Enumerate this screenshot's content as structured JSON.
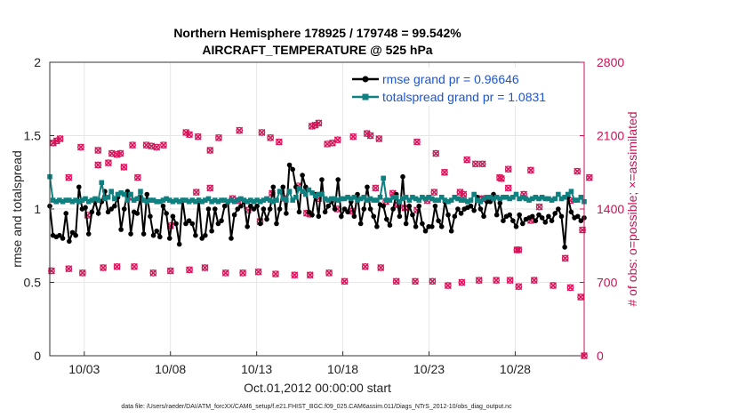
{
  "chart_data": {
    "type": "line",
    "title_line1": "Northern Hemisphere 178925 / 179748 = 99.542%",
    "title_line2": "AIRCRAFT_TEMPERATURE @ 525 hPa",
    "xlabel": "Oct.01,2012 00:00:00 start",
    "ylabel_left": "rmse and totalspread",
    "ylabel_right": "# of obs: o=possible; ×=assimilated",
    "x_range": [
      1.0,
      32.0
    ],
    "ylim_left": [
      0,
      2
    ],
    "ylim_right": [
      0,
      2800
    ],
    "x_ticks": [
      {
        "x": 3,
        "label": "10/03"
      },
      {
        "x": 8,
        "label": "10/08"
      },
      {
        "x": 13,
        "label": "10/13"
      },
      {
        "x": 18,
        "label": "10/18"
      },
      {
        "x": 23,
        "label": "10/23"
      },
      {
        "x": 28,
        "label": "10/28"
      }
    ],
    "y_ticks_left": [
      "0",
      "0.5",
      "1",
      "1.5",
      "2"
    ],
    "y_ticks_right": [
      "0",
      "700",
      "1400",
      "2100",
      "2800"
    ],
    "colors": {
      "rmse": "#000000",
      "spread": "#0e8080",
      "obs": "#d8145a",
      "legend_text": "#1a55d6",
      "right_axis": "#cc1155"
    },
    "series": [
      {
        "name": "rmse grand pr = 0.96646",
        "values": [
          1.02,
          0.82,
          0.81,
          0.82,
          0.8,
          0.97,
          0.78,
          0.84,
          0.82,
          1.15,
          1.0,
          1.01,
          0.83,
          0.98,
          1.05,
          0.97,
          1.05,
          1.12,
          0.98,
          1.0,
          1.02,
          1.08,
          0.86,
          1.0,
          1.12,
          0.83,
          0.98,
          0.97,
          1.08,
          0.83,
          1.1,
          0.95,
          0.82,
          0.85,
          0.81,
          1.02,
          0.97,
          0.8,
          0.95,
          0.9,
          0.76,
          1.06,
          0.9,
          0.92,
          0.9,
          0.82,
          1.06,
          0.8,
          0.82,
          1.0,
          0.85,
          1.0,
          0.9,
          0.92,
          1.02,
          1.05,
          0.8,
          0.96,
          1.0,
          1.02,
          1.05,
          0.88,
          1.02,
          1.0,
          1.02,
          0.9,
          1.0,
          0.93,
          1.0,
          1.15,
          0.9,
          1.0,
          1.15,
          0.97,
          1.3,
          1.27,
          1.15,
          0.98,
          1.23,
          1.15,
          0.98,
          0.96,
          1.1,
          0.95,
          1.2,
          0.98,
          1.02,
          1.05,
          1.0,
          1.2,
          0.95,
          1.0,
          0.98,
          1.05,
          0.95,
          1.1,
          0.9,
          1.0,
          1.15,
          1.0,
          0.95,
          0.88,
          1.03,
          1.02,
          0.93,
          0.89,
          1.0,
          1.1,
          0.95,
          1.22,
          0.9,
          1.02,
          0.96,
          0.88,
          1.02,
          0.9,
          0.85,
          0.88,
          0.88,
          1.02,
          0.92,
          0.88,
          1.05,
          0.96,
          0.85,
          0.95,
          1.0,
          0.97,
          1.0,
          1.01,
          1.02,
          0.99,
          1.08,
          1.0,
          0.95,
          1.05,
          1.05,
          1.1,
          0.96,
          1.04,
          0.92,
          0.95,
          0.96,
          0.92,
          0.88,
          0.96,
          0.9,
          0.93,
          0.94,
          0.95,
          0.92,
          0.96,
          0.94,
          0.91,
          0.95,
          0.92,
          0.97,
          1.0,
          0.95,
          0.74,
          1.08,
          0.98,
          0.94,
          0.95,
          0.92,
          0.94
        ],
        "color": "#000000"
      },
      {
        "name": "totalspread grand pr = 1.0831",
        "values": [
          1.22,
          1.06,
          1.05,
          1.06,
          1.05,
          1.06,
          1.06,
          1.05,
          1.06,
          1.05,
          1.06,
          1.07,
          1.05,
          1.06,
          1.07,
          1.06,
          1.18,
          1.07,
          1.08,
          1.12,
          1.07,
          1.1,
          1.11,
          1.1,
          1.06,
          1.1,
          1.06,
          1.07,
          1.12,
          1.06,
          1.05,
          1.06,
          1.06,
          1.05,
          1.05,
          1.06,
          1.07,
          1.06,
          1.05,
          1.06,
          1.05,
          1.06,
          1.06,
          1.05,
          1.06,
          1.05,
          1.06,
          1.05,
          1.06,
          1.07,
          1.05,
          1.06,
          1.05,
          1.06,
          1.06,
          1.05,
          1.06,
          1.05,
          1.06,
          1.07,
          1.06,
          1.05,
          1.06,
          1.05,
          1.06,
          1.05,
          1.06,
          1.07,
          1.06,
          1.05,
          1.06,
          1.12,
          1.07,
          1.06,
          1.12,
          1.06,
          1.08,
          1.14,
          1.12,
          1.1,
          1.13,
          1.11,
          1.09,
          1.1,
          1.1,
          1.07,
          1.06,
          1.07,
          1.07,
          1.06,
          1.07,
          1.07,
          1.08,
          1.07,
          1.08,
          1.06,
          1.07,
          1.08,
          1.06,
          1.07,
          1.06,
          1.06,
          1.08,
          1.21,
          1.06,
          1.06,
          1.08,
          1.08,
          1.05,
          1.07,
          1.08,
          1.06,
          1.08,
          1.07,
          1.06,
          1.08,
          1.07,
          1.08,
          1.07,
          1.06,
          1.06,
          1.08,
          1.06,
          1.05,
          1.06,
          1.08,
          1.07,
          1.06,
          1.06,
          1.05,
          1.06,
          1.1,
          1.06,
          1.05,
          1.07,
          1.08,
          1.08,
          1.07,
          1.08,
          1.07,
          1.08,
          1.08,
          1.07,
          1.08,
          1.1,
          1.07,
          1.08,
          1.07,
          1.06,
          1.07,
          1.08,
          1.07,
          1.08,
          1.07,
          1.07,
          1.06,
          1.07,
          1.1,
          1.07,
          1.08,
          1.1,
          1.12,
          1.06,
          1.06,
          1.08,
          1.05
        ],
        "color": "#0e8080"
      }
    ],
    "obs_possible_top": [
      [
        1.2,
        2030
      ],
      [
        1.4,
        2050
      ],
      [
        1.6,
        2070
      ],
      [
        2.8,
        1990
      ],
      [
        3.8,
        1960
      ],
      [
        4.6,
        1930
      ],
      [
        4.9,
        1920
      ],
      [
        5.1,
        1930
      ],
      [
        5.3,
        1800
      ],
      [
        5.8,
        2010
      ],
      [
        6.6,
        2010
      ],
      [
        6.9,
        2000
      ],
      [
        7.2,
        1990
      ],
      [
        7.6,
        2010
      ],
      [
        8.9,
        2130
      ],
      [
        9.1,
        2110
      ],
      [
        9.6,
        2090
      ],
      [
        10.3,
        1960
      ],
      [
        10.8,
        2080
      ],
      [
        12.0,
        2150
      ],
      [
        13.3,
        2130
      ],
      [
        13.8,
        2080
      ],
      [
        14.3,
        2040
      ],
      [
        16.2,
        2190
      ],
      [
        16.4,
        2200
      ],
      [
        16.6,
        2220
      ],
      [
        17.1,
        2020
      ],
      [
        17.4,
        2030
      ],
      [
        17.7,
        2060
      ],
      [
        18.6,
        2090
      ],
      [
        19.4,
        2120
      ],
      [
        19.6,
        2100
      ],
      [
        20.1,
        2070
      ],
      [
        22.3,
        2040
      ],
      [
        23.4,
        1930
      ],
      [
        25.2,
        1870
      ],
      [
        25.7,
        1830
      ],
      [
        26.1,
        1830
      ],
      [
        27.1,
        1700
      ],
      [
        27.6,
        1780
      ],
      [
        28.9,
        1770
      ],
      [
        31.6,
        1760
      ],
      [
        32.3,
        1700
      ],
      [
        24.8,
        1560
      ],
      [
        25.0,
        1540
      ]
    ],
    "obs_possible_bottom": [
      [
        1.1,
        810
      ],
      [
        2.1,
        830
      ],
      [
        2.9,
        790
      ],
      [
        4.1,
        840
      ],
      [
        4.9,
        850
      ],
      [
        5.9,
        850
      ],
      [
        7.0,
        790
      ],
      [
        8.0,
        810
      ],
      [
        9.1,
        820
      ],
      [
        10.0,
        840
      ],
      [
        11.2,
        790
      ],
      [
        12.2,
        790
      ],
      [
        13.1,
        800
      ],
      [
        14.1,
        780
      ],
      [
        15.2,
        770
      ],
      [
        16.1,
        770
      ],
      [
        17.2,
        790
      ],
      [
        18.1,
        710
      ],
      [
        19.3,
        850
      ],
      [
        20.2,
        840
      ],
      [
        21.1,
        710
      ],
      [
        22.2,
        710
      ],
      [
        23.2,
        710
      ],
      [
        24.1,
        670
      ],
      [
        24.9,
        700
      ],
      [
        25.9,
        720
      ],
      [
        26.9,
        720
      ],
      [
        27.7,
        720
      ],
      [
        28.2,
        660
      ],
      [
        29.1,
        720
      ],
      [
        30.2,
        670
      ],
      [
        31.2,
        650
      ],
      [
        31.9,
        1200
      ],
      [
        31.8,
        560
      ],
      [
        28.2,
        1010
      ],
      [
        30.9,
        930
      ],
      [
        32.0,
        0
      ]
    ],
    "obs_possible_mid": [
      [
        2.1,
        1700
      ],
      [
        3.2,
        1340
      ],
      [
        3.8,
        1820
      ],
      [
        4.4,
        1840
      ],
      [
        5.6,
        1510
      ],
      [
        6.1,
        1700
      ],
      [
        8.0,
        1240
      ],
      [
        9.5,
        1560
      ],
      [
        10.3,
        1600
      ],
      [
        11.6,
        1500
      ],
      [
        11.9,
        1480
      ],
      [
        12.5,
        1390
      ],
      [
        13.2,
        1280
      ],
      [
        13.9,
        1550
      ],
      [
        14.6,
        1500
      ],
      [
        15.4,
        1620
      ],
      [
        15.9,
        1360
      ],
      [
        16.1,
        1350
      ],
      [
        16.6,
        1500
      ],
      [
        17.7,
        1400
      ],
      [
        18.5,
        1380
      ],
      [
        19.9,
        1600
      ],
      [
        20.5,
        1470
      ],
      [
        20.9,
        1550
      ],
      [
        21.2,
        1440
      ],
      [
        21.6,
        1410
      ],
      [
        22.3,
        1390
      ],
      [
        22.9,
        1480
      ],
      [
        23.3,
        1560
      ],
      [
        23.9,
        1750
      ],
      [
        25.9,
        1500
      ],
      [
        26.2,
        1500
      ],
      [
        27.2,
        1690
      ],
      [
        27.6,
        1600
      ],
      [
        28.5,
        1540
      ],
      [
        28.9,
        1290
      ],
      [
        29.4,
        1420
      ],
      [
        31.2,
        1480
      ],
      [
        28.1,
        1010
      ]
    ]
  },
  "legend": {
    "rmse_label": "rmse grand pr = 0.96646",
    "spread_label": "totalspread grand pr = 1.0831"
  },
  "footnote": "data file: /Users/raeder/DAI/ATM_forcXX/CAM6_setup/f.e21.FHIST_BGC.f09_025.CAM6assim.011/Diags_NTrS_2012-10/obs_diag_output.nc"
}
